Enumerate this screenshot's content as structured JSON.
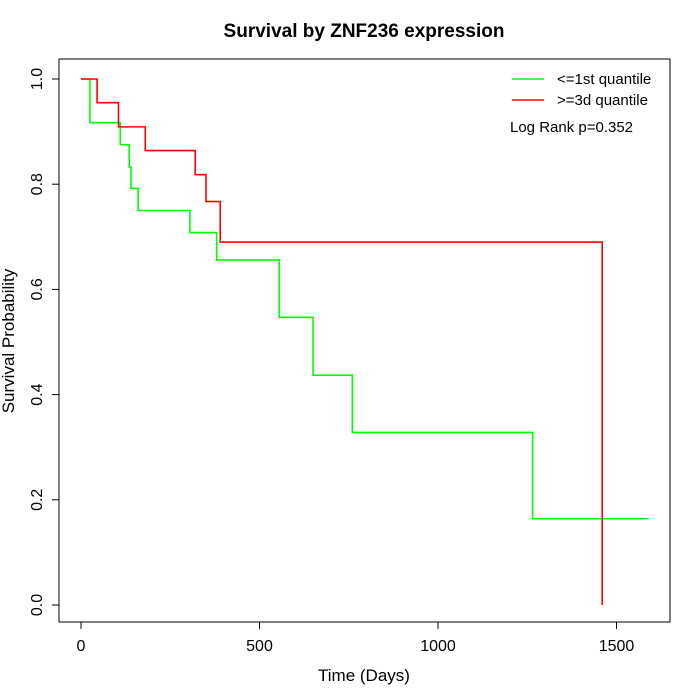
{
  "chart_data": {
    "type": "line",
    "title": "Survival by ZNF236 expression",
    "xlabel": "Time (Days)",
    "ylabel": "Survival Probability",
    "xlim": [
      0,
      1600
    ],
    "ylim": [
      0,
      1
    ],
    "x_ticks": [
      0,
      500,
      1000,
      1500
    ],
    "x_tick_labels": [
      "0",
      "500",
      "1000",
      "1500"
    ],
    "y_ticks": [
      0,
      0.2,
      0.4,
      0.6,
      0.8,
      1.0
    ],
    "y_tick_labels": [
      "0.0",
      "0.2",
      "0.4",
      "0.6",
      "0.8",
      "1.0"
    ],
    "grid": false,
    "legend_position": "top-right",
    "annotation": "Log Rank p=0.352",
    "series": [
      {
        "name": "<=1st quantile",
        "color": "#00ff00",
        "step": true,
        "x": [
          0,
          25,
          30,
          110,
          135,
          140,
          160,
          305,
          380,
          555,
          650,
          760,
          1265,
          1590
        ],
        "y": [
          1.0,
          0.917,
          0.917,
          0.875,
          0.833,
          0.792,
          0.75,
          0.708,
          0.656,
          0.547,
          0.437,
          0.328,
          0.164,
          0.164
        ]
      },
      {
        "name": ">=3d quantile",
        "color": "#ff0000",
        "step": true,
        "x": [
          0,
          45,
          105,
          180,
          320,
          350,
          390,
          1460,
          1460
        ],
        "y": [
          1.0,
          0.955,
          0.909,
          0.864,
          0.818,
          0.767,
          0.69,
          0.69,
          0.0
        ]
      }
    ]
  }
}
